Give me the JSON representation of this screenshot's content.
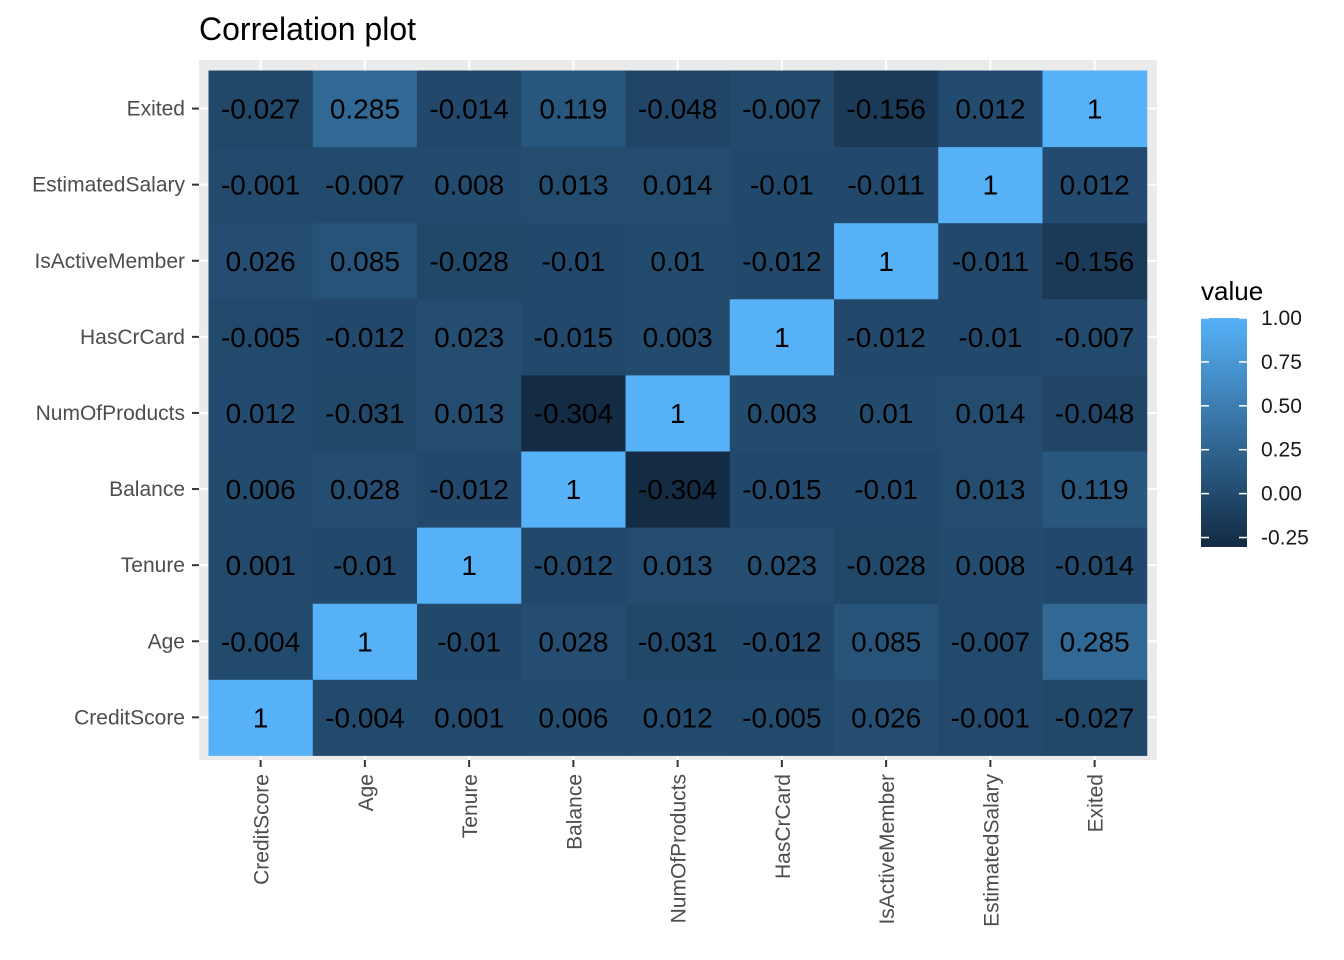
{
  "chart_data": {
    "type": "heatmap",
    "title": "Correlation plot",
    "xlabel": "",
    "ylabel": "",
    "variables": [
      "CreditScore",
      "Age",
      "Tenure",
      "Balance",
      "NumOfProducts",
      "HasCrCard",
      "IsActiveMember",
      "EstimatedSalary",
      "Exited"
    ],
    "matrix": [
      [
        1,
        -0.004,
        0.001,
        0.006,
        0.012,
        -0.005,
        0.026,
        -0.001,
        -0.027
      ],
      [
        -0.004,
        1,
        -0.01,
        0.028,
        -0.031,
        -0.012,
        0.085,
        -0.007,
        0.285
      ],
      [
        0.001,
        -0.01,
        1,
        -0.012,
        0.013,
        0.023,
        -0.028,
        0.008,
        -0.014
      ],
      [
        0.006,
        0.028,
        -0.012,
        1,
        -0.304,
        -0.015,
        -0.01,
        0.013,
        0.119
      ],
      [
        0.012,
        -0.031,
        0.013,
        -0.304,
        1,
        0.003,
        0.01,
        0.014,
        -0.048
      ],
      [
        -0.005,
        -0.012,
        0.023,
        -0.015,
        0.003,
        1,
        -0.012,
        -0.01,
        -0.007
      ],
      [
        0.026,
        0.085,
        -0.028,
        -0.01,
        0.01,
        -0.012,
        1,
        -0.011,
        -0.156
      ],
      [
        -0.001,
        -0.007,
        0.008,
        0.013,
        0.014,
        -0.01,
        -0.011,
        1,
        0.012
      ],
      [
        -0.027,
        0.285,
        -0.014,
        0.119,
        -0.048,
        -0.007,
        -0.156,
        0.012,
        1
      ]
    ],
    "legend": {
      "title": "value",
      "placement": "right",
      "ticks": [
        "1.00",
        "0.75",
        "0.50",
        "0.25",
        "0.00",
        "-0.25"
      ],
      "tick_values": [
        1.0,
        0.75,
        0.5,
        0.25,
        0.0,
        -0.25
      ],
      "range": [
        -0.304,
        1
      ]
    },
    "colors": {
      "low": "#132B43",
      "high": "#56B1F7",
      "panel": "#EBEBEB",
      "grid": "#FFFFFF"
    },
    "grid": true
  }
}
